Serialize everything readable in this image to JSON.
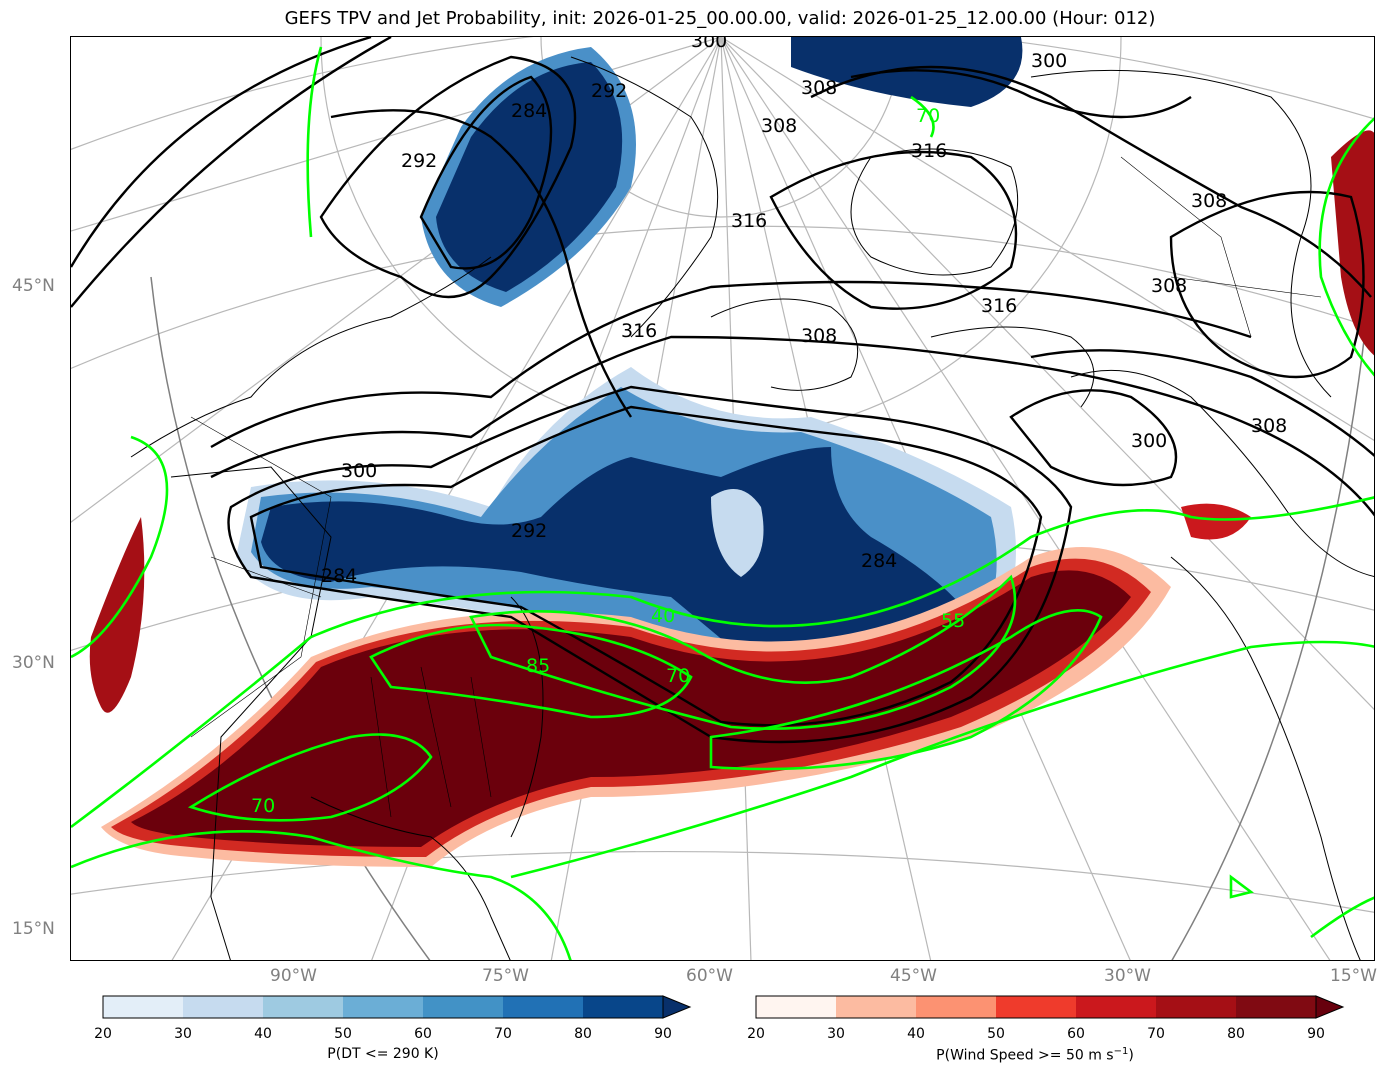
{
  "title": "GEFS TPV and Jet Probability, init: 2026-01-25_00.00.00, valid: 2026-01-25_12.00.00 (Hour: 012)",
  "lat_labels": [
    "45°N",
    "30°N",
    "15°N"
  ],
  "lon_labels": [
    "90°W",
    "75°W",
    "60°W",
    "45°W",
    "30°W",
    "15°W"
  ],
  "colorbar_left": {
    "label": "P(DT <= 290 K)",
    "ticks": [
      "20",
      "30",
      "40",
      "50",
      "60",
      "70",
      "80",
      "90"
    ],
    "colors": [
      "#e3eef8",
      "#c6dbef",
      "#9ecae1",
      "#6baed6",
      "#4292c6",
      "#2171b5",
      "#08468a"
    ],
    "extend_color": "#08306b"
  },
  "colorbar_right": {
    "label_main": "P(Wind Speed >= 50 m s",
    "label_sup": "−1",
    "label_end": ")",
    "ticks": [
      "20",
      "30",
      "40",
      "50",
      "60",
      "70",
      "80",
      "90"
    ],
    "colors": [
      "#fff5f0",
      "#fcbba1",
      "#fc9272",
      "#ef3b2c",
      "#cb181d",
      "#a50f15",
      "#800a12"
    ],
    "extend_color": "#67000d"
  },
  "contour_labels_black": [
    "300",
    "308",
    "316",
    "292",
    "284",
    "292",
    "316",
    "308",
    "300",
    "308",
    "316",
    "300",
    "308",
    "292",
    "284",
    "284",
    "300",
    "308",
    "316",
    "308"
  ],
  "contour_labels_green": [
    "40",
    "70",
    "85",
    "70",
    "55",
    "70"
  ],
  "colors": {
    "tpv_blue": "#08306b",
    "tpv_mid": "#4a90c8",
    "tpv_light": "#c6dbef",
    "jet_red": "#6b000c",
    "jet_mid": "#d22a22",
    "jet_light": "#fcbba1",
    "jet_contour": "#00ff00",
    "theta_contour": "#000000",
    "graticule": "#b0b0b0"
  }
}
